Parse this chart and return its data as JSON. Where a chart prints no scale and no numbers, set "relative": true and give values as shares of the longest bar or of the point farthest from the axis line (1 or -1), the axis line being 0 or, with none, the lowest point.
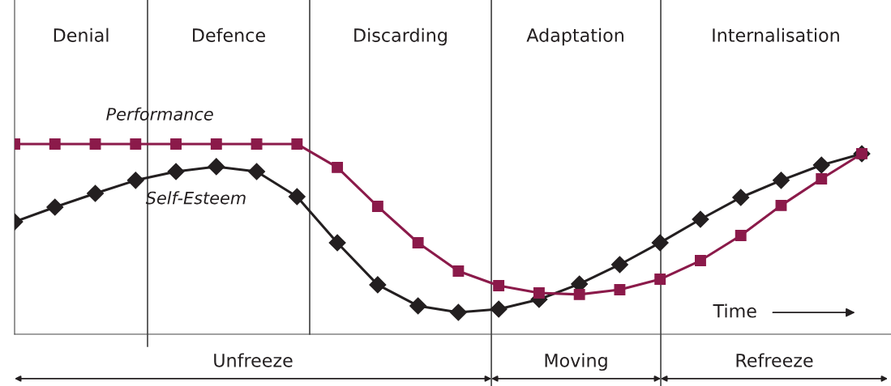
{
  "chart_data": {
    "type": "line",
    "relative": true,
    "categories": [
      null,
      null,
      null,
      null,
      null,
      null,
      null,
      null,
      null,
      null,
      null,
      null,
      null,
      null,
      null,
      null,
      null,
      null,
      null,
      null,
      null,
      null
    ],
    "series": [
      {
        "name": "Performance",
        "color": "#8b1a4a",
        "marker": "square",
        "values": [
          1.0,
          1.0,
          1.0,
          1.0,
          1.0,
          1.0,
          1.0,
          1.0,
          0.877,
          0.672,
          0.481,
          0.332,
          0.255,
          0.217,
          0.209,
          0.234,
          0.289,
          0.387,
          0.519,
          0.677,
          0.817,
          0.949
        ]
      },
      {
        "name": "Self-Esteem",
        "color": "#231f20",
        "marker": "diamond",
        "values": [
          0.591,
          0.668,
          0.74,
          0.809,
          0.855,
          0.881,
          0.855,
          0.723,
          0.481,
          0.26,
          0.149,
          0.115,
          0.132,
          0.183,
          0.264,
          0.366,
          0.481,
          0.604,
          0.719,
          0.809,
          0.889,
          0.949
        ]
      }
    ],
    "annotations": [
      "Denial",
      "Defence",
      "Discarding",
      "Adaptation",
      "Internalisation",
      "Unfreeze",
      "Moving",
      "Refreeze",
      "Time"
    ],
    "line_style": "solid"
  }
}
